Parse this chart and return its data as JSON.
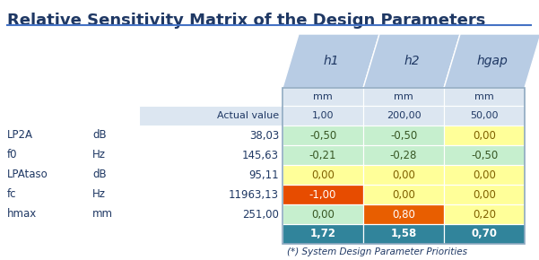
{
  "title": "Relative Sensitivity Matrix of the Design Parameters",
  "title_color": "#1F3864",
  "title_fontsize": 13,
  "row_labels": [
    "LP2A",
    "f0",
    "LPAtaso",
    "fc",
    "hmax"
  ],
  "row_units": [
    "dB",
    "Hz",
    "dB",
    "Hz",
    "mm"
  ],
  "row_actual": [
    "38,03",
    "145,63",
    "95,11",
    "11963,13",
    "251,00"
  ],
  "col_headers": [
    "h1",
    "h2",
    "hgap"
  ],
  "col_units": [
    "mm",
    "mm",
    "mm"
  ],
  "col_actual": [
    "1,00",
    "200,00",
    "50,00"
  ],
  "data_values": [
    [
      "-0,50",
      "-0,50",
      "0,00"
    ],
    [
      "-0,21",
      "-0,28",
      "-0,50"
    ],
    [
      "0,00",
      "0,00",
      "0,00"
    ],
    [
      "-1,00",
      "0,00",
      "0,00"
    ],
    [
      "0,00",
      "0,80",
      "0,20"
    ]
  ],
  "priority_row": [
    "1,72",
    "1,58",
    "0,70"
  ],
  "footer": "(*) System Design Parameter Priorities",
  "cell_colors": [
    [
      "#c6efce",
      "#c6efce",
      "#ffff99"
    ],
    [
      "#c6efce",
      "#c6efce",
      "#c6efce"
    ],
    [
      "#ffff99",
      "#ffff99",
      "#ffff99"
    ],
    [
      "#e74c00",
      "#ffff99",
      "#ffff99"
    ],
    [
      "#c6efce",
      "#e85e00",
      "#ffff99"
    ]
  ],
  "cell_text_colors": [
    [
      "#375623",
      "#375623",
      "#7f6000"
    ],
    [
      "#375623",
      "#375623",
      "#375623"
    ],
    [
      "#7f6000",
      "#7f6000",
      "#7f6000"
    ],
    [
      "#ffffff",
      "#7f6000",
      "#7f6000"
    ],
    [
      "#375623",
      "#ffffff",
      "#7f6000"
    ]
  ],
  "priority_color": "#31849b",
  "header_slant_bg": "#b8cce4",
  "unit_row_bg": "#dce6f1",
  "actual_row_bg": "#dce6f1",
  "bg_color": "#ffffff",
  "title_underline_color": "#4472c4",
  "dark_text": "#1F3864"
}
